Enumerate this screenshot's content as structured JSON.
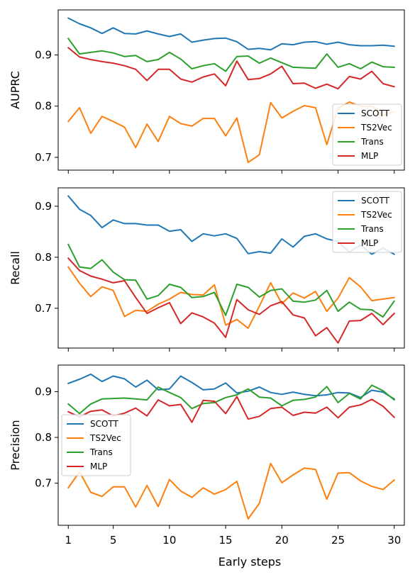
{
  "chart_data": {
    "type": "line",
    "shared_xlabel": "Early steps",
    "x": [
      1,
      2,
      3,
      4,
      5,
      6,
      7,
      8,
      9,
      10,
      11,
      12,
      13,
      14,
      15,
      16,
      17,
      18,
      19,
      20,
      21,
      22,
      23,
      24,
      25,
      26,
      27,
      28,
      29,
      30
    ],
    "xticks": [
      1,
      5,
      10,
      15,
      20,
      25,
      30
    ],
    "xlim": [
      0.1,
      30.9
    ],
    "colors": {
      "SCOTT": "#1f77b4",
      "TS2Vec": "#ff7f0e",
      "Trans": "#2ca02c",
      "MLP": "#d62728"
    },
    "panels": [
      {
        "ylabel": "AUPRC",
        "ylim": [
          0.675,
          0.988
        ],
        "yticks": [
          0.7,
          0.8,
          0.9
        ],
        "ytick_labels": [
          "0.7",
          "0.8",
          "0.9"
        ],
        "legend_position": "lower-right",
        "series": [
          {
            "name": "SCOTT",
            "values": [
              0.972,
              0.961,
              0.953,
              0.942,
              0.953,
              0.942,
              0.941,
              0.947,
              0.941,
              0.936,
              0.941,
              0.925,
              0.929,
              0.932,
              0.933,
              0.926,
              0.911,
              0.913,
              0.91,
              0.922,
              0.92,
              0.925,
              0.926,
              0.921,
              0.925,
              0.92,
              0.918,
              0.918,
              0.919,
              0.917
            ]
          },
          {
            "name": "TS2Vec",
            "values": [
              0.77,
              0.797,
              0.747,
              0.78,
              0.77,
              0.759,
              0.719,
              0.765,
              0.731,
              0.78,
              0.766,
              0.761,
              0.776,
              0.776,
              0.742,
              0.777,
              0.69,
              0.705,
              0.807,
              0.777,
              0.79,
              0.801,
              0.797,
              0.725,
              0.796,
              0.808,
              0.8,
              0.8,
              0.782,
              0.789
            ]
          },
          {
            "name": "Trans",
            "values": [
              0.932,
              0.902,
              0.905,
              0.908,
              0.904,
              0.897,
              0.899,
              0.887,
              0.891,
              0.905,
              0.892,
              0.873,
              0.879,
              0.883,
              0.868,
              0.897,
              0.898,
              0.884,
              0.894,
              0.885,
              0.876,
              0.875,
              0.874,
              0.902,
              0.876,
              0.883,
              0.873,
              0.886,
              0.877,
              0.876
            ]
          },
          {
            "name": "MLP",
            "values": [
              0.914,
              0.896,
              0.891,
              0.887,
              0.884,
              0.879,
              0.872,
              0.85,
              0.872,
              0.872,
              0.853,
              0.847,
              0.857,
              0.863,
              0.84,
              0.888,
              0.852,
              0.854,
              0.863,
              0.878,
              0.844,
              0.845,
              0.835,
              0.843,
              0.834,
              0.858,
              0.853,
              0.868,
              0.844,
              0.838
            ]
          }
        ]
      },
      {
        "ylabel": "Recall",
        "ylim": [
          0.622,
          0.936
        ],
        "yticks": [
          0.7,
          0.8,
          0.9
        ],
        "ytick_labels": [
          "0.7",
          "0.8",
          "0.9"
        ],
        "legend_position": "upper-right",
        "series": [
          {
            "name": "SCOTT",
            "values": [
              0.92,
              0.894,
              0.882,
              0.858,
              0.873,
              0.866,
              0.866,
              0.863,
              0.863,
              0.851,
              0.854,
              0.831,
              0.846,
              0.842,
              0.846,
              0.837,
              0.807,
              0.811,
              0.808,
              0.836,
              0.82,
              0.841,
              0.846,
              0.836,
              0.831,
              0.81,
              0.824,
              0.806,
              0.818,
              0.806
            ]
          },
          {
            "name": "TS2Vec",
            "values": [
              0.781,
              0.749,
              0.723,
              0.742,
              0.735,
              0.684,
              0.696,
              0.694,
              0.708,
              0.718,
              0.731,
              0.727,
              0.726,
              0.746,
              0.667,
              0.678,
              0.661,
              0.704,
              0.75,
              0.709,
              0.73,
              0.72,
              0.733,
              0.694,
              0.72,
              0.76,
              0.742,
              0.715,
              0.718,
              0.721
            ]
          },
          {
            "name": "Trans",
            "values": [
              0.825,
              0.781,
              0.778,
              0.795,
              0.771,
              0.756,
              0.755,
              0.718,
              0.725,
              0.747,
              0.741,
              0.721,
              0.723,
              0.731,
              0.686,
              0.747,
              0.741,
              0.722,
              0.735,
              0.738,
              0.714,
              0.712,
              0.716,
              0.735,
              0.694,
              0.712,
              0.698,
              0.697,
              0.683,
              0.714
            ]
          },
          {
            "name": "MLP",
            "values": [
              0.798,
              0.774,
              0.763,
              0.757,
              0.75,
              0.754,
              0.721,
              0.69,
              0.701,
              0.711,
              0.67,
              0.691,
              0.683,
              0.671,
              0.643,
              0.717,
              0.697,
              0.688,
              0.705,
              0.713,
              0.687,
              0.681,
              0.646,
              0.662,
              0.632,
              0.675,
              0.676,
              0.69,
              0.668,
              0.69
            ]
          }
        ]
      },
      {
        "ylabel": "Precision",
        "ylim": [
          0.608,
          0.958
        ],
        "yticks": [
          0.7,
          0.8,
          0.9
        ],
        "ytick_labels": [
          "0.7",
          "0.8",
          "0.9"
        ],
        "legend_position": "center-left",
        "series": [
          {
            "name": "SCOTT",
            "values": [
              0.918,
              0.927,
              0.938,
              0.922,
              0.934,
              0.928,
              0.91,
              0.925,
              0.904,
              0.906,
              0.934,
              0.92,
              0.904,
              0.906,
              0.919,
              0.897,
              0.901,
              0.91,
              0.898,
              0.894,
              0.899,
              0.894,
              0.891,
              0.893,
              0.898,
              0.897,
              0.887,
              0.903,
              0.899,
              0.884
            ]
          },
          {
            "name": "TS2Vec",
            "values": [
              0.69,
              0.725,
              0.68,
              0.671,
              0.692,
              0.692,
              0.648,
              0.695,
              0.649,
              0.708,
              0.683,
              0.669,
              0.69,
              0.676,
              0.686,
              0.704,
              0.622,
              0.656,
              0.743,
              0.701,
              0.718,
              0.733,
              0.73,
              0.665,
              0.722,
              0.723,
              0.705,
              0.693,
              0.686,
              0.707
            ]
          },
          {
            "name": "Trans",
            "values": [
              0.873,
              0.852,
              0.873,
              0.884,
              0.885,
              0.886,
              0.884,
              0.882,
              0.91,
              0.898,
              0.887,
              0.863,
              0.874,
              0.876,
              0.887,
              0.893,
              0.906,
              0.888,
              0.886,
              0.869,
              0.881,
              0.883,
              0.888,
              0.911,
              0.876,
              0.896,
              0.884,
              0.914,
              0.902,
              0.882
            ]
          },
          {
            "name": "MLP",
            "values": [
              0.856,
              0.845,
              0.857,
              0.86,
              0.847,
              0.853,
              0.864,
              0.847,
              0.882,
              0.869,
              0.872,
              0.833,
              0.881,
              0.879,
              0.852,
              0.889,
              0.84,
              0.846,
              0.863,
              0.866,
              0.848,
              0.855,
              0.853,
              0.866,
              0.843,
              0.866,
              0.871,
              0.883,
              0.868,
              0.844
            ]
          }
        ]
      }
    ]
  }
}
